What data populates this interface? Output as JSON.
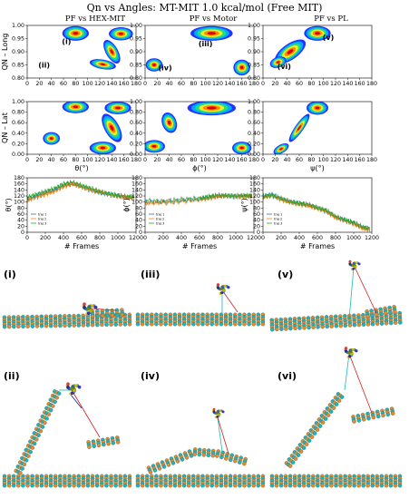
{
  "title": "Qn vs Angles: MT-MIT 1.0 kcal/mol (Free MIT)",
  "columns": [
    {
      "title": "PF vs HEX-MIT",
      "xlabel": "θ(°)",
      "ylabel_traj": "θ(°)"
    },
    {
      "title": "PF vs Motor",
      "xlabel": "ϕ(°)",
      "ylabel_traj": "ϕ(°)"
    },
    {
      "title": "PF vs PL",
      "xlabel": "ψ(°)",
      "ylabel_traj": "ψ(°)"
    }
  ],
  "row_ylabels": {
    "long": "QN – Long",
    "lat": "QN – Lat"
  },
  "traj_xlabel": "# Frames",
  "legend": [
    "traj 1",
    "traj 2",
    "traj 3"
  ],
  "series_colors": [
    "#1f77b4",
    "#ff7f0e",
    "#2ca02c"
  ],
  "contour_levels": [
    "#2233ff",
    "#00aaff",
    "#22dd88",
    "#eeee22",
    "#ff8800",
    "#dd0000"
  ],
  "annotations": {
    "a": "(i)",
    "b": "(ii)",
    "c": "(iii)",
    "d": "(iv)",
    "e": "(v)",
    "f": "(vi)"
  },
  "snapshot_labels": [
    "(i)",
    "(iii)",
    "(v)",
    "(ii)",
    "(iv)",
    "(vi)"
  ],
  "chart_data": [
    {
      "type": "heatmap",
      "title": "PF vs HEX-MIT",
      "xlabel": "",
      "ylabel": "QN – Long",
      "xlim": [
        0,
        180
      ],
      "ylim": [
        0.8,
        1.0
      ],
      "xticks": [
        0,
        20,
        40,
        60,
        80,
        100,
        120,
        140,
        160,
        180
      ],
      "yticks": [
        0.8,
        0.85,
        0.9,
        0.95,
        1.0
      ],
      "peaks": [
        {
          "x": 80,
          "y": 0.97
        },
        {
          "x": 155,
          "y": 0.97
        },
        {
          "x": 125,
          "y": 0.85
        }
      ]
    },
    {
      "type": "heatmap",
      "title": "PF vs Motor",
      "xlabel": "",
      "ylabel": "",
      "xlim": [
        0,
        180
      ],
      "ylim": [
        0.8,
        1.0
      ],
      "xticks": [
        0,
        20,
        40,
        60,
        80,
        100,
        120,
        140,
        160,
        180
      ],
      "yticks": [
        0.8,
        0.85,
        0.9,
        0.95,
        1.0
      ],
      "peaks": [
        {
          "x": 110,
          "y": 0.97
        },
        {
          "x": 15,
          "y": 0.85
        },
        {
          "x": 160,
          "y": 0.84
        }
      ]
    },
    {
      "type": "heatmap",
      "title": "PF vs PL",
      "xlabel": "",
      "ylabel": "",
      "xlim": [
        0,
        180
      ],
      "ylim": [
        0.8,
        1.0
      ],
      "xticks": [
        0,
        20,
        40,
        60,
        80,
        100,
        120,
        140,
        160,
        180
      ],
      "yticks": [
        0.8,
        0.85,
        0.9,
        0.95,
        1.0
      ],
      "peaks": [
        {
          "x": 90,
          "y": 0.97
        },
        {
          "x": 25,
          "y": 0.86
        }
      ]
    },
    {
      "type": "heatmap",
      "xlabel": "θ(°)",
      "ylabel": "QN – Lat",
      "xlim": [
        0,
        180
      ],
      "ylim": [
        0.0,
        1.0
      ],
      "xticks": [
        0,
        20,
        40,
        60,
        80,
        100,
        120,
        140,
        160,
        180
      ],
      "yticks": [
        0.0,
        0.2,
        0.4,
        0.6,
        0.8,
        1.0
      ],
      "peaks": [
        {
          "x": 80,
          "y": 0.88
        },
        {
          "x": 150,
          "y": 0.88
        },
        {
          "x": 125,
          "y": 0.1
        }
      ]
    },
    {
      "type": "heatmap",
      "xlabel": "ϕ(°)",
      "ylabel": "",
      "xlim": [
        0,
        180
      ],
      "ylim": [
        0.0,
        1.0
      ],
      "xticks": [
        0,
        20,
        40,
        60,
        80,
        100,
        120,
        140,
        160,
        180
      ],
      "yticks": [
        0.0,
        0.2,
        0.4,
        0.6,
        0.8,
        1.0
      ],
      "peaks": [
        {
          "x": 110,
          "y": 0.88
        },
        {
          "x": 15,
          "y": 0.15
        },
        {
          "x": 160,
          "y": 0.12
        }
      ]
    },
    {
      "type": "heatmap",
      "xlabel": "ψ(°)",
      "ylabel": "",
      "xlim": [
        0,
        180
      ],
      "ylim": [
        0.0,
        1.0
      ],
      "xticks": [
        0,
        20,
        40,
        60,
        80,
        100,
        120,
        140,
        160,
        180
      ],
      "yticks": [
        0.0,
        0.2,
        0.4,
        0.6,
        0.8,
        1.0
      ],
      "peaks": [
        {
          "x": 90,
          "y": 0.88
        },
        {
          "x": 30,
          "y": 0.1
        }
      ]
    },
    {
      "type": "line",
      "xlabel": "# Frames",
      "ylabel": "θ(°)",
      "xlim": [
        0,
        1200
      ],
      "ylim": [
        0,
        180
      ],
      "xticks": [
        0,
        200,
        400,
        600,
        800,
        1000,
        1200
      ],
      "yticks": [
        0,
        20,
        40,
        60,
        80,
        100,
        120,
        140,
        160,
        180
      ],
      "series": [
        {
          "name": "traj 1",
          "x": [
            0,
            100,
            200,
            300,
            400,
            500,
            600,
            700,
            800,
            900,
            1000,
            1100,
            1180
          ],
          "values": [
            110,
            120,
            130,
            140,
            155,
            160,
            150,
            140,
            130,
            125,
            120,
            115,
            115
          ]
        },
        {
          "name": "traj 2",
          "x": [
            0,
            100,
            200,
            300,
            400,
            500,
            600,
            700,
            800,
            900,
            1000,
            1100,
            1180
          ],
          "values": [
            105,
            115,
            125,
            135,
            150,
            160,
            150,
            140,
            135,
            125,
            120,
            115,
            112
          ]
        },
        {
          "name": "traj 3",
          "x": [
            0,
            100,
            200,
            300,
            400,
            500,
            600,
            700,
            800,
            900,
            1000,
            1100,
            1180
          ],
          "values": [
            115,
            125,
            135,
            145,
            160,
            165,
            155,
            145,
            135,
            128,
            122,
            118,
            118
          ]
        }
      ]
    },
    {
      "type": "line",
      "xlabel": "# Frames",
      "ylabel": "ϕ(°)",
      "xlim": [
        0,
        1200
      ],
      "ylim": [
        0,
        180
      ],
      "xticks": [
        0,
        200,
        400,
        600,
        800,
        1000,
        1200
      ],
      "yticks": [
        0,
        20,
        40,
        60,
        80,
        100,
        120,
        140,
        160,
        180
      ],
      "series": [
        {
          "name": "traj 1",
          "x": [
            0,
            200,
            400,
            600,
            700,
            800,
            900,
            1000,
            1100,
            1180
          ],
          "values": [
            100,
            100,
            105,
            110,
            115,
            120,
            120,
            118,
            120,
            118
          ]
        },
        {
          "name": "traj 2",
          "x": [
            0,
            200,
            400,
            600,
            700,
            800,
            900,
            1000,
            1100,
            1180
          ],
          "values": [
            95,
            98,
            102,
            108,
            112,
            118,
            120,
            118,
            118,
            120
          ]
        },
        {
          "name": "traj 3",
          "x": [
            0,
            200,
            400,
            600,
            700,
            800,
            900,
            1000,
            1100,
            1180
          ],
          "values": [
            105,
            102,
            108,
            112,
            118,
            122,
            122,
            120,
            122,
            120
          ]
        }
      ]
    },
    {
      "type": "line",
      "xlabel": "# Frames",
      "ylabel": "ψ(°)",
      "xlim": [
        0,
        1200
      ],
      "ylim": [
        0,
        180
      ],
      "xticks": [
        0,
        200,
        400,
        600,
        800,
        1000,
        1200
      ],
      "yticks": [
        0,
        20,
        40,
        60,
        80,
        100,
        120,
        140,
        160,
        180
      ],
      "series": [
        {
          "name": "traj 1",
          "x": [
            0,
            100,
            200,
            300,
            400,
            500,
            600,
            700,
            800,
            900,
            1000,
            1100,
            1180
          ],
          "values": [
            120,
            125,
            110,
            100,
            95,
            90,
            80,
            70,
            50,
            40,
            30,
            15,
            10
          ]
        },
        {
          "name": "traj 2",
          "x": [
            0,
            100,
            200,
            300,
            400,
            500,
            600,
            700,
            800,
            900,
            1000,
            1100,
            1180
          ],
          "values": [
            115,
            120,
            108,
            98,
            92,
            88,
            78,
            68,
            48,
            38,
            28,
            12,
            8
          ]
        },
        {
          "name": "traj 3",
          "x": [
            0,
            100,
            200,
            300,
            400,
            500,
            600,
            700,
            800,
            900,
            1000,
            1100,
            1180
          ],
          "values": [
            118,
            122,
            112,
            102,
            96,
            92,
            82,
            72,
            52,
            42,
            32,
            18,
            12
          ]
        }
      ]
    }
  ]
}
